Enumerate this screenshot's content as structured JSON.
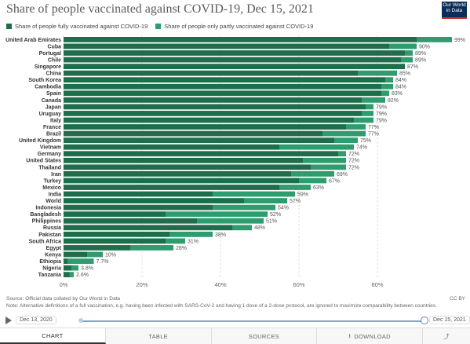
{
  "title": "Share of people vaccinated against COVID-19, Dec 15, 2021",
  "logo": {
    "line1": "Our World",
    "line2": "in Data"
  },
  "legend": [
    {
      "label": "Share of people fully vaccinated against COVID-19",
      "color": "#1e6e4c"
    },
    {
      "label": "Share of people only partly vaccinated against COVID-19",
      "color": "#2f9c6e"
    }
  ],
  "chart_data": {
    "type": "bar",
    "orientation": "horizontal",
    "stacked": true,
    "title": "Share of people vaccinated against COVID-19, Dec 15, 2021",
    "xlim": [
      0,
      100
    ],
    "xticks": [
      "0%",
      "20%",
      "40%",
      "60%",
      "80%"
    ],
    "grid": true,
    "legend_position": "top",
    "categories": [
      "United Arab Emirates",
      "Cuba",
      "Portugal",
      "Chile",
      "Singapore",
      "China",
      "South Korea",
      "Cambodia",
      "Spain",
      "Canada",
      "Japan",
      "Uruguay",
      "Italy",
      "France",
      "Brazil",
      "United Kingdom",
      "Vietnam",
      "Germany",
      "United States",
      "Thailand",
      "Iran",
      "Turkey",
      "Mexico",
      "India",
      "World",
      "Indonesia",
      "Bangladesh",
      "Philippines",
      "Russia",
      "Pakistan",
      "South Africa",
      "Egypt",
      "Kenya",
      "Ethiopia",
      "Nigeria",
      "Tanzania"
    ],
    "series": [
      {
        "name": "Share of people fully vaccinated against COVID-19",
        "color": "#1e6e4c",
        "values": [
          90,
          83,
          87,
          86,
          87,
          75,
          82,
          81,
          81,
          76,
          77,
          76,
          74,
          72,
          66,
          69,
          55,
          70,
          61,
          63,
          58,
          60,
          55,
          38,
          46,
          38,
          26,
          34,
          43,
          27,
          26,
          17,
          6,
          1,
          2,
          1.5
        ]
      },
      {
        "name": "Share of people only partly vaccinated against COVID-19",
        "color": "#2f9c6e",
        "values": [
          9,
          7,
          2,
          3,
          0,
          10,
          2,
          3,
          2,
          6,
          2,
          3,
          5,
          5,
          11,
          6,
          19,
          2,
          11,
          9,
          11,
          7,
          8,
          21,
          11,
          16,
          26,
          17,
          5,
          11,
          5,
          11,
          4,
          6.7,
          1.8,
          1.1
        ]
      }
    ],
    "total_labels": [
      "99%",
      "90%",
      "89%",
      "89%",
      "87%",
      "85%",
      "84%",
      "84%",
      "83%",
      "82%",
      "79%",
      "79%",
      "79%",
      "77%",
      "77%",
      "75%",
      "74%",
      "72%",
      "72%",
      "72%",
      "69%",
      "67%",
      "63%",
      "59%",
      "57%",
      "54%",
      "52%",
      "51%",
      "48%",
      "38%",
      "31%",
      "28%",
      "10%",
      "7.7%",
      "3.8%",
      "2.6%"
    ]
  },
  "footer": {
    "source": "Source: Official data collated by Our World in Data",
    "note": "Note: Alternative definitions of a full vaccination, e.g. having been infected with SARS-CoV-2 and having 1 dose of a 2-dose protocol, are ignored to maximize comparability between countries.",
    "license": "CC BY"
  },
  "timeline": {
    "start": "Dec 13, 2020",
    "end": "Dec 15, 2021"
  },
  "tabs": {
    "chart": "CHART",
    "table": "TABLE",
    "sources": "SOURCES",
    "download": "DOWNLOAD"
  }
}
